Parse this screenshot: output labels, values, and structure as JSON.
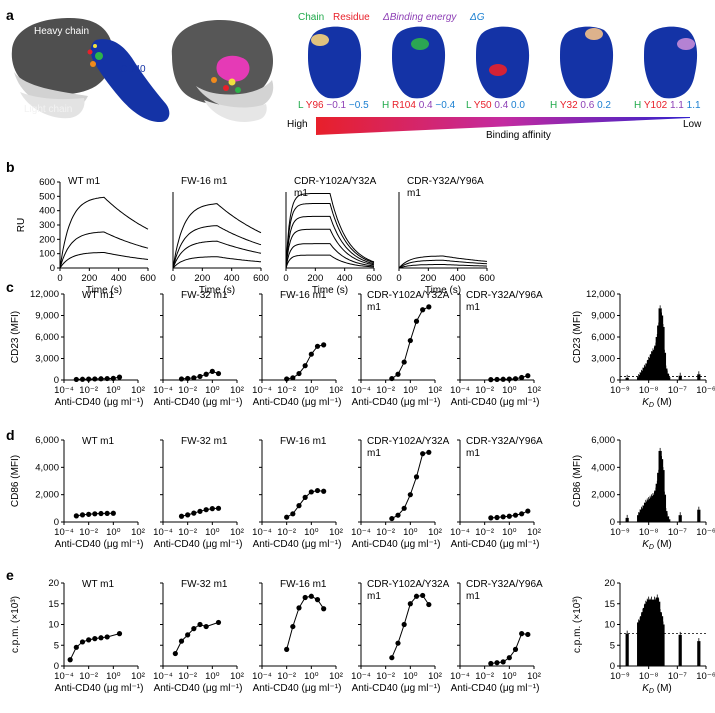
{
  "panel_labels": [
    "a",
    "b",
    "c",
    "d",
    "e"
  ],
  "colors": {
    "chain": "#1fa94a",
    "residue": "#e8202a",
    "binding_energy": "#8d3fb5",
    "delta_g": "#1a7fd1",
    "cd40": "#1433a6",
    "heavy_chain": "#555555",
    "light_chain": "#cfcfcf"
  },
  "panel_a": {
    "labels": {
      "heavy": "Heavy chain",
      "light": "Light chain",
      "cd40": "CD40"
    },
    "legend": {
      "chain": "Chain",
      "residue": "Residue",
      "binding_energy": "ΔBinding energy",
      "delta_g": "ΔG"
    },
    "residues": [
      {
        "chain": "L",
        "residue": "Y96",
        "dbe": "−0.1",
        "dg": "−0.5"
      },
      {
        "chain": "H",
        "residue": "R104",
        "dbe": "0.4",
        "dg": "−0.4"
      },
      {
        "chain": "L",
        "residue": "Y50",
        "dbe": "0.4",
        "dg": "0.0"
      },
      {
        "chain": "H",
        "residue": "Y32",
        "dbe": "0.6",
        "dg": "0.2"
      },
      {
        "chain": "H",
        "residue": "Y102",
        "dbe": "1.1",
        "dg": "1.1"
      }
    ],
    "affinity_high": "High",
    "affinity_low": "Low",
    "affinity_label": "Binding affinity"
  },
  "panel_b": {
    "ylabel": "RU",
    "xlabel": "Time (s)",
    "xticks": [
      "0",
      "200",
      "400",
      "600"
    ],
    "yticks": [
      "0",
      "100",
      "200",
      "300",
      "400",
      "500",
      "600"
    ]
  },
  "xlabel_conc": "Anti-CD40 (μg ml⁻¹)",
  "kd_xlabel": "K",
  "kd_sub": "D",
  "kd_unit": " (M)",
  "conc_ticks": [
    "10⁻⁴",
    "10⁻²",
    "10⁰",
    "10²"
  ],
  "kd_ticks": [
    "10⁻⁹",
    "10⁻⁸",
    "10⁻⁷",
    "10⁻⁶"
  ],
  "rows": {
    "c": {
      "ylabel": "CD23 (MFI)",
      "yticks": [
        "0",
        "3,000",
        "6,000",
        "9,000",
        "12,000"
      ],
      "kd_yticks": [
        "0",
        "3,000",
        "6,000",
        "9,000",
        "12,000"
      ]
    },
    "d": {
      "ylabel": "CD86 (MFI)",
      "yticks": [
        "0",
        "2,000",
        "4,000",
        "6,000"
      ],
      "kd_yticks": [
        "0",
        "2,000",
        "4,000",
        "6,000"
      ]
    },
    "e": {
      "ylabel": "c.p.m. (×10³)",
      "yticks": [
        "0",
        "5",
        "10",
        "15",
        "20"
      ],
      "kd_yticks": [
        "0",
        "5",
        "10",
        "15",
        "20"
      ]
    }
  },
  "chart_data": [
    {
      "type": "line",
      "panel": "b",
      "xlabel": "Time (s)",
      "ylabel": "RU",
      "xlim": [
        0,
        600
      ],
      "ylim": [
        0,
        600
      ],
      "subplots": [
        {
          "title": "WT m1",
          "peaks": [
            500,
            255,
            110
          ]
        },
        {
          "title": "FW-16 m1",
          "peaks": [
            455,
            300,
            190,
            80
          ]
        },
        {
          "title": "CDR-Y102A/Y32A m1",
          "peaks": [
            520,
            450,
            360,
            270,
            170,
            90
          ]
        },
        {
          "title": "CDR-Y32A/Y96A m1",
          "peaks": [
            85,
            55,
            25
          ]
        }
      ]
    },
    {
      "type": "line",
      "panel": "c",
      "ylabel": "CD23 (MFI)",
      "xlabel": "Anti-CD40 (μg ml⁻¹)",
      "ylim": [
        0,
        12000
      ],
      "xlim_log10": [
        -4,
        2
      ],
      "subplots": [
        {
          "title": "WT m1",
          "x_log10": [
            -3,
            -2.5,
            -2,
            -1.5,
            -1,
            -0.5,
            0,
            0.5
          ],
          "y": [
            80,
            100,
            120,
            150,
            170,
            200,
            230,
            400
          ]
        },
        {
          "title": "FW-32 m1",
          "x_log10": [
            -2.5,
            -2,
            -1.5,
            -1,
            -0.5,
            0,
            0.5
          ],
          "y": [
            150,
            220,
            300,
            500,
            800,
            1200,
            900
          ]
        },
        {
          "title": "FW-16 m1",
          "x_log10": [
            -2,
            -1.5,
            -1,
            -0.5,
            0,
            0.5,
            1
          ],
          "y": [
            150,
            300,
            900,
            2000,
            3600,
            4700,
            4900
          ]
        },
        {
          "title": "CDR-Y102A/Y32A m1",
          "x_log10": [
            -1.5,
            -1,
            -0.5,
            0,
            0.5,
            1,
            1.5
          ],
          "y": [
            200,
            800,
            2500,
            5500,
            8200,
            9800,
            10200
          ]
        },
        {
          "title": "CDR-Y32A/Y96A m1",
          "x_log10": [
            -1.5,
            -1,
            -0.5,
            0,
            0.5,
            1,
            1.5
          ],
          "y": [
            50,
            80,
            100,
            130,
            180,
            350,
            600
          ]
        }
      ],
      "kd_bars": {
        "xlabel": "K_D (M)",
        "ylim": [
          0,
          12000
        ],
        "baseline": 500,
        "log10_kd": [
          -8.75,
          -8.35,
          -8.3,
          -8.25,
          -8.2,
          -8.15,
          -8.1,
          -8.05,
          -8.0,
          -7.95,
          -7.9,
          -7.85,
          -7.8,
          -7.75,
          -7.7,
          -7.65,
          -7.6,
          -7.55,
          -7.5,
          -7.45,
          -7.4,
          -7.35,
          -7.3,
          -6.9,
          -6.25
        ],
        "values": [
          300,
          400,
          700,
          1000,
          1300,
          1700,
          1900,
          2300,
          2800,
          3100,
          3600,
          4000,
          4200,
          4800,
          6000,
          7600,
          10000,
          9000,
          7400,
          3800,
          1600,
          900,
          400,
          600,
          800
        ]
      }
    },
    {
      "type": "line",
      "panel": "d",
      "ylabel": "CD86 (MFI)",
      "xlabel": "Anti-CD40 (μg ml⁻¹)",
      "ylim": [
        0,
        6000
      ],
      "xlim_log10": [
        -4,
        2
      ],
      "subplots": [
        {
          "title": "WT m1",
          "x_log10": [
            -3,
            -2.5,
            -2,
            -1.5,
            -1,
            -0.5,
            0
          ],
          "y": [
            450,
            520,
            560,
            600,
            620,
            630,
            640
          ]
        },
        {
          "title": "FW-32 m1",
          "x_log10": [
            -2.5,
            -2,
            -1.5,
            -1,
            -0.5,
            0,
            0.5
          ],
          "y": [
            420,
            520,
            650,
            780,
            900,
            980,
            1000
          ]
        },
        {
          "title": "FW-16 m1",
          "x_log10": [
            -2,
            -1.5,
            -1,
            -0.5,
            0,
            0.5,
            1
          ],
          "y": [
            350,
            600,
            1200,
            1800,
            2200,
            2300,
            2250
          ]
        },
        {
          "title": "CDR-Y102A/Y32A m1",
          "x_log10": [
            -1.5,
            -1,
            -0.5,
            0,
            0.5,
            1,
            1.5
          ],
          "y": [
            250,
            500,
            1000,
            2000,
            3300,
            5000,
            5100
          ]
        },
        {
          "title": "CDR-Y32A/Y96A m1",
          "x_log10": [
            -1.5,
            -1,
            -0.5,
            0,
            0.5,
            1,
            1.5
          ],
          "y": [
            300,
            330,
            380,
            420,
            500,
            600,
            800
          ]
        }
      ],
      "kd_bars": {
        "xlabel": "K_D (M)",
        "ylim": [
          0,
          6000
        ],
        "baseline": 0,
        "log10_kd": [
          -8.75,
          -8.35,
          -8.3,
          -8.25,
          -8.2,
          -8.15,
          -8.1,
          -8.05,
          -8.0,
          -7.95,
          -7.9,
          -7.85,
          -7.8,
          -7.75,
          -7.7,
          -7.65,
          -7.6,
          -7.55,
          -7.5,
          -7.45,
          -7.4,
          -7.35,
          -7.3,
          -6.9,
          -6.25
        ],
        "values": [
          300,
          500,
          700,
          900,
          1000,
          1200,
          1400,
          1500,
          1600,
          1700,
          1800,
          1900,
          2000,
          2300,
          2800,
          3600,
          5200,
          4600,
          3800,
          2000,
          800,
          400,
          200,
          500,
          900
        ]
      }
    },
    {
      "type": "line",
      "panel": "e",
      "ylabel": "c.p.m. (×10³)",
      "xlabel": "Anti-CD40 (μg ml⁻¹)",
      "ylim": [
        0,
        20
      ],
      "xlim_log10": [
        -4,
        2
      ],
      "subplots": [
        {
          "title": "WT m1",
          "x_log10": [
            -3.5,
            -3,
            -2.5,
            -2,
            -1.5,
            -1,
            -0.5,
            0.5
          ],
          "y": [
            1.5,
            4.5,
            5.8,
            6.3,
            6.6,
            6.8,
            7.0,
            7.8
          ]
        },
        {
          "title": "FW-32 m1",
          "x_log10": [
            -3,
            -2.5,
            -2,
            -1.5,
            -1,
            -0.5,
            0.5
          ],
          "y": [
            3.0,
            6.0,
            7.5,
            9.0,
            10.0,
            9.5,
            10.5
          ]
        },
        {
          "title": "FW-16 m1",
          "x_log10": [
            -2,
            -1.5,
            -1,
            -0.5,
            0,
            0.5,
            1
          ],
          "y": [
            4.0,
            9.5,
            14.0,
            16.5,
            16.8,
            16.0,
            13.8
          ]
        },
        {
          "title": "CDR-Y102A/Y32A m1",
          "x_log10": [
            -1.5,
            -1,
            -0.5,
            0,
            0.5,
            1,
            1.5
          ],
          "y": [
            2.0,
            5.5,
            10.0,
            15.0,
            16.8,
            17.0,
            14.8
          ]
        },
        {
          "title": "CDR-Y32A/Y96A m1",
          "x_log10": [
            -1.5,
            -1,
            -0.5,
            0,
            0.5,
            1,
            1.5
          ],
          "y": [
            0.6,
            0.8,
            1.0,
            2.0,
            4.0,
            7.8,
            7.6
          ]
        }
      ],
      "kd_bars": {
        "xlabel": "K_D (M)",
        "ylim": [
          0,
          20
        ],
        "baseline": 7.8,
        "log10_kd": [
          -8.75,
          -8.35,
          -8.3,
          -8.25,
          -8.2,
          -8.15,
          -8.1,
          -8.05,
          -8.0,
          -7.95,
          -7.9,
          -7.85,
          -7.8,
          -7.75,
          -7.7,
          -7.65,
          -7.6,
          -7.55,
          -7.5,
          -6.9,
          -6.25
        ],
        "values": [
          7.8,
          10.5,
          11.0,
          12.0,
          13.0,
          14.0,
          15.0,
          15.5,
          16.0,
          15.5,
          16.0,
          15.0,
          16.0,
          15.5,
          16.5,
          15.5,
          13.0,
          12.0,
          10.0,
          7.5,
          6.0
        ]
      }
    }
  ]
}
